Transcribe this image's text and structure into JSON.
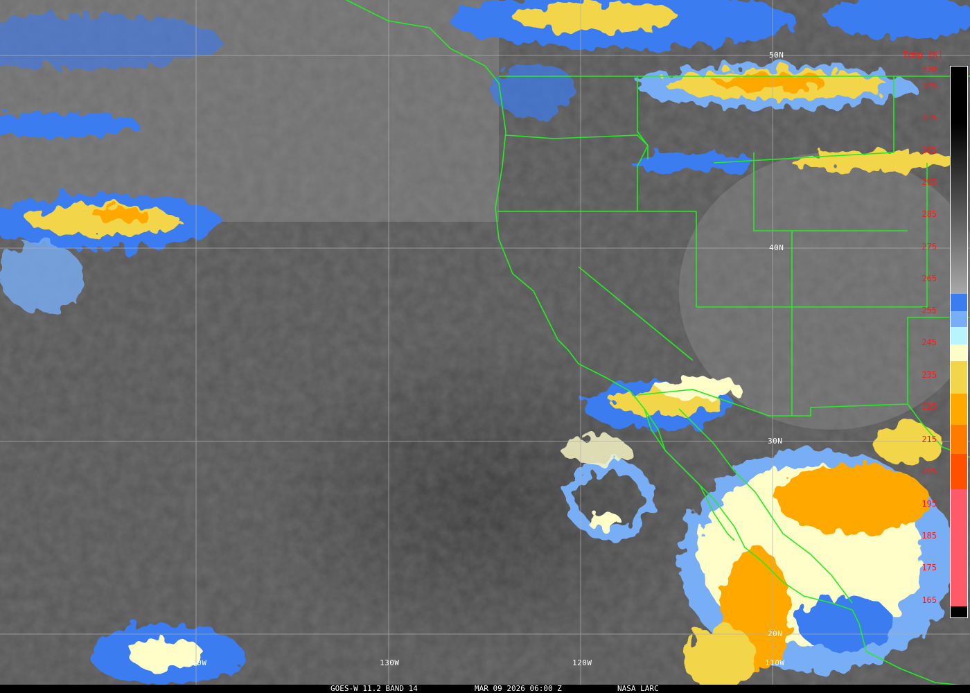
{
  "caption": {
    "satellite": "GOES-W 11.2 BAND 14",
    "datetime": "MAR 09 2026 06:00 Z",
    "source": "NASA LARC"
  },
  "colorbar": {
    "title": "Temp [K]",
    "ticks": [
      "330",
      "325",
      "315",
      "305",
      "295",
      "285",
      "275",
      "265",
      "255",
      "245",
      "235",
      "225",
      "215",
      "205",
      "195",
      "185",
      "175",
      "165"
    ],
    "colors": {
      "warm": "#000000",
      "cold_gray": "#a8a8a8",
      "blue": "#3b7cf0",
      "light_blue": "#78aef5",
      "cyan": "#b8f4fb",
      "cream": "#fffdc8",
      "yellow": "#f2d54a",
      "orange": "#ffa800",
      "dark_orange": "#ff7b00",
      "red_orange": "#ff4f00",
      "pink": "#ff5a6a"
    }
  },
  "grid": {
    "lat_labels": [
      "50N",
      "40N",
      "30N",
      "20N"
    ],
    "lon_labels": [
      "140W",
      "130W",
      "120W",
      "110W"
    ]
  },
  "boundary_color": "#22ee22"
}
